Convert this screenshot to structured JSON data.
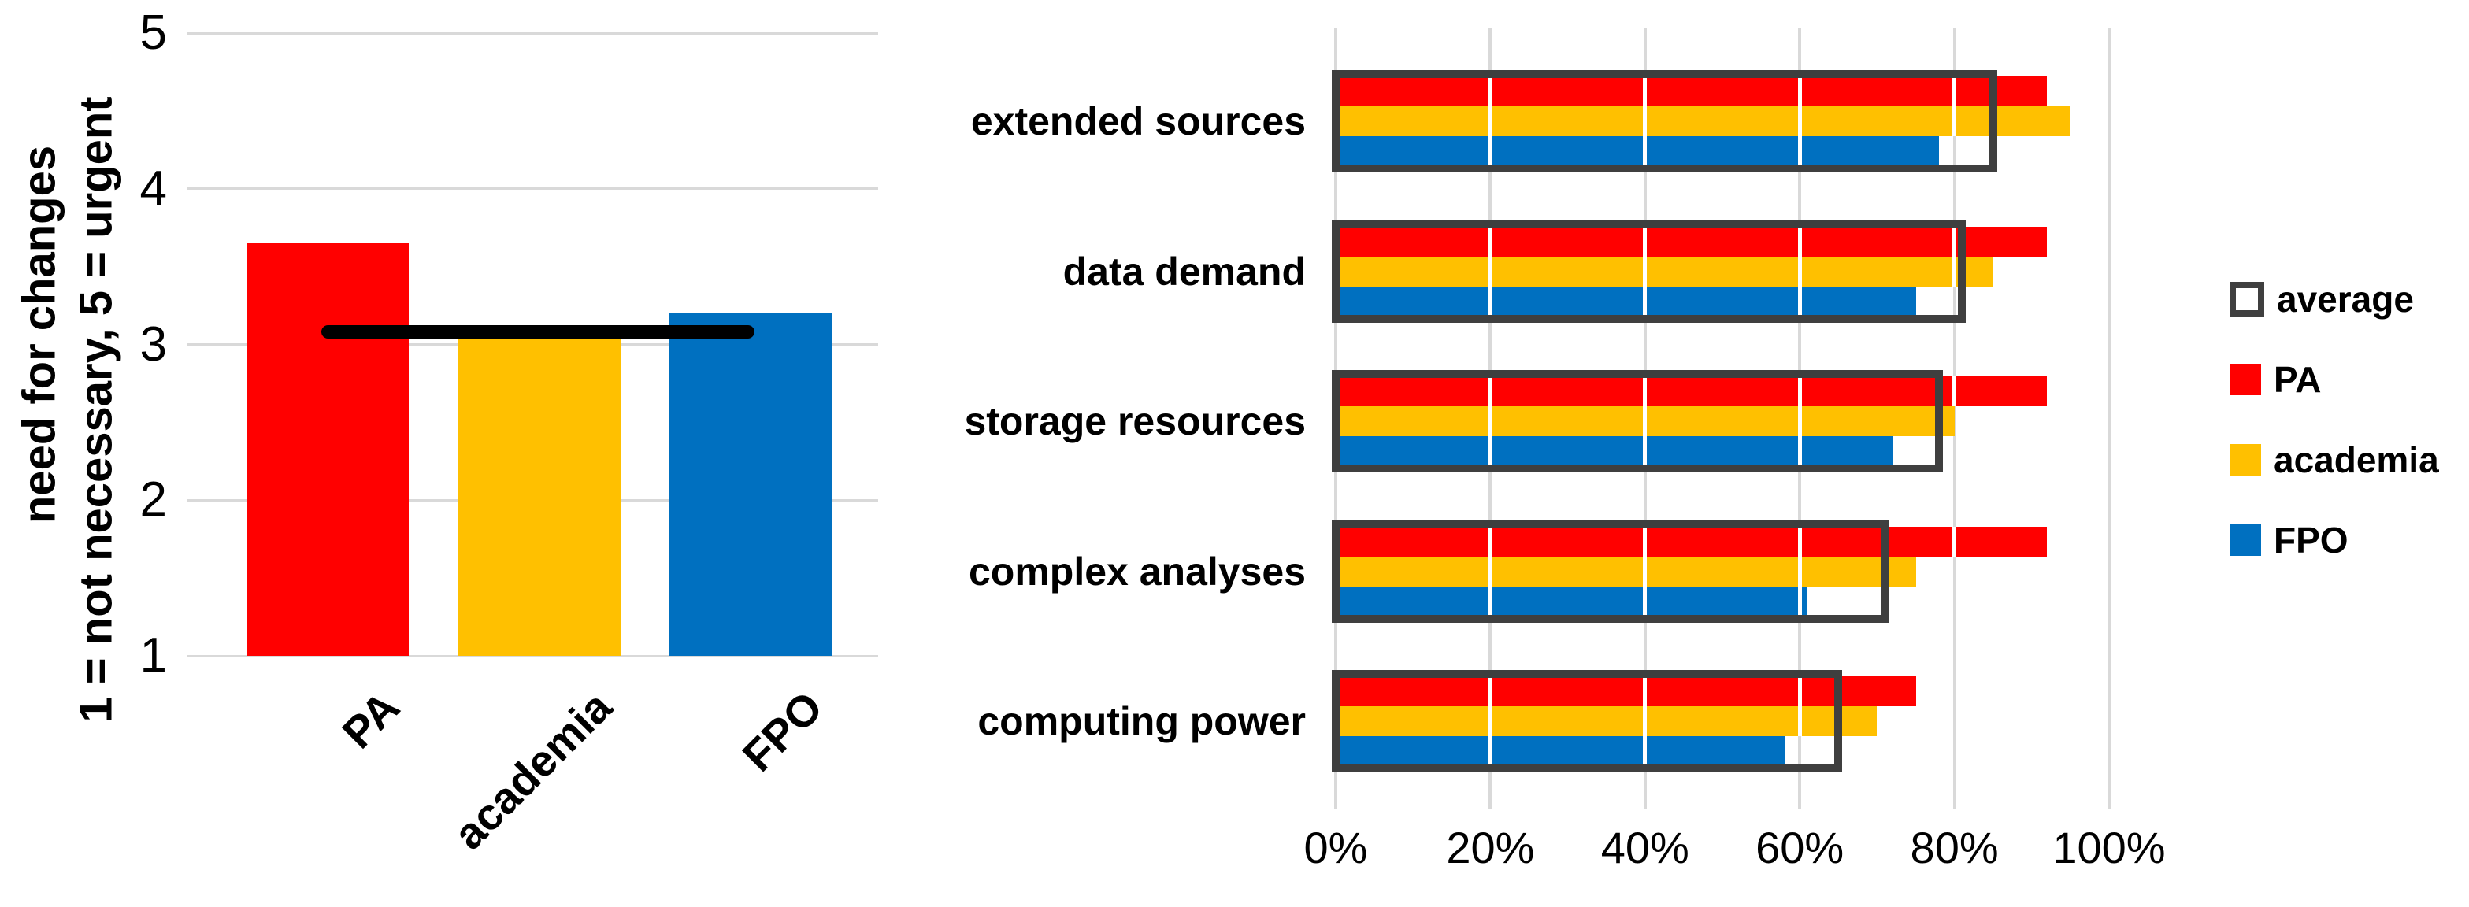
{
  "chart_data": [
    {
      "type": "bar",
      "title": "",
      "ylabel_line1": "need for changes",
      "ylabel_line2": "1 = not necessary, 5 = urgent",
      "categories": [
        "PA",
        "academia",
        "FPO"
      ],
      "values": [
        3.65,
        3.05,
        3.2
      ],
      "bar_colors": [
        "#ff0000",
        "#ffc000",
        "#0070c0"
      ],
      "average_line_value": 3.08,
      "average_line_color": "#000000",
      "ylim": [
        1,
        5
      ],
      "yticks": [
        5,
        4,
        3,
        2,
        1
      ],
      "grid": true,
      "gridline_color": "#d9d9d9"
    },
    {
      "type": "bar-horizontal",
      "title": "",
      "categories": [
        "extended sources",
        "data demand",
        "storage resources",
        "complex analyses",
        "computing power"
      ],
      "series": [
        {
          "name": "average",
          "style": "outline",
          "color": "#3f3f3f",
          "values": [
            85,
            81,
            78,
            71,
            65
          ]
        },
        {
          "name": "PA",
          "style": "fill",
          "color": "#ff0000",
          "values": [
            92,
            92,
            92,
            92,
            75
          ]
        },
        {
          "name": "academia",
          "style": "fill",
          "color": "#ffc000",
          "values": [
            95,
            85,
            80,
            75,
            70
          ]
        },
        {
          "name": "FPO",
          "style": "fill",
          "color": "#0070c0",
          "values": [
            78,
            75,
            72,
            61,
            58
          ]
        }
      ],
      "xticks": [
        "0%",
        "20%",
        "40%",
        "60%",
        "80%",
        "100%"
      ],
      "xtick_values": [
        0,
        20,
        40,
        60,
        80,
        100
      ],
      "xlim": [
        0,
        100
      ],
      "grid": true,
      "gridline_color": "#d9d9d9",
      "legend_position": "right"
    }
  ],
  "legend": {
    "items": [
      {
        "label": "average",
        "swatch_type": "outline",
        "color": "#3f3f3f"
      },
      {
        "label": "PA",
        "swatch_type": "fill",
        "color": "#ff0000"
      },
      {
        "label": "academia",
        "swatch_type": "fill",
        "color": "#ffc000"
      },
      {
        "label": "FPO",
        "swatch_type": "fill",
        "color": "#0070c0"
      }
    ]
  },
  "colors": {
    "background": "#ffffff",
    "grid": "#d9d9d9",
    "average_outline": "#3f3f3f",
    "average_line": "#000000",
    "text": "#000000"
  }
}
